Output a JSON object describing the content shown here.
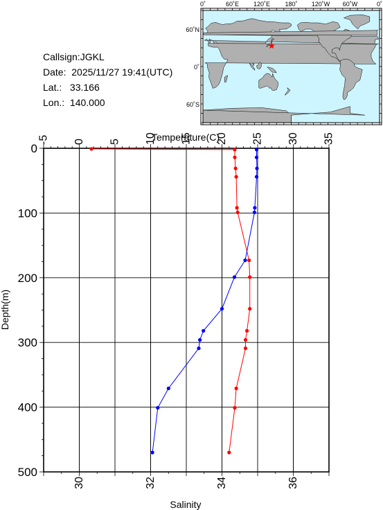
{
  "station": {
    "callsign": "Callsign:JGKL",
    "date": "Date:  2025/11/27 19:41(UTC)",
    "lat": "Lat.:   33.166",
    "lon": "Lon.:  140.000"
  },
  "map": {
    "lon_ticks": [
      "0˚",
      "60˚E",
      "120˚E",
      "180˚",
      "120˚W",
      "60˚W",
      "0˚"
    ],
    "lat_ticks": [
      "60˚N",
      "0˚",
      "60˚S"
    ],
    "ocean_color": "#ccf5ff",
    "land_color": "#b0b0b0",
    "marker": {
      "lat": 33.166,
      "lon": 140.0,
      "color": "#ff0000",
      "symbol": "star"
    }
  },
  "chart_data": {
    "type": "line",
    "x_top_label": "Temperature(C)",
    "x_bottom_label": "Salinity",
    "ylabel": "Depth(m)",
    "temperature_range": [
      -5,
      35
    ],
    "temperature_ticks": [
      "-5",
      "0",
      "5",
      "10",
      "15",
      "20",
      "25",
      "30",
      "35"
    ],
    "salinity_range": [
      29,
      37
    ],
    "salinity_ticks": [
      "30",
      "32",
      "34",
      "36"
    ],
    "depth_range": [
      0,
      500
    ],
    "depth_ticks": [
      "0",
      "100",
      "200",
      "300",
      "400",
      "500"
    ],
    "grid": true,
    "series": [
      {
        "key": "temperature",
        "color": "#ff0000",
        "points": [
          {
            "value": 1.7,
            "depth": 1
          },
          {
            "value": 21.8,
            "depth": 2
          },
          {
            "value": 21.8,
            "depth": 14
          },
          {
            "value": 21.9,
            "depth": 31
          },
          {
            "value": 22.0,
            "depth": 44
          },
          {
            "value": 22.1,
            "depth": 92
          },
          {
            "value": 22.2,
            "depth": 99
          },
          {
            "value": 23.8,
            "depth": 173
          },
          {
            "value": 23.9,
            "depth": 199
          },
          {
            "value": 23.9,
            "depth": 248
          },
          {
            "value": 23.5,
            "depth": 282
          },
          {
            "value": 23.3,
            "depth": 296
          },
          {
            "value": 23.3,
            "depth": 309
          },
          {
            "value": 22.0,
            "depth": 371
          },
          {
            "value": 21.8,
            "depth": 401
          },
          {
            "value": 21.0,
            "depth": 470
          }
        ]
      },
      {
        "key": "salinity",
        "color": "#0000ff",
        "points": [
          {
            "value": 34.97,
            "depth": 2
          },
          {
            "value": 34.97,
            "depth": 14
          },
          {
            "value": 34.98,
            "depth": 31
          },
          {
            "value": 34.97,
            "depth": 44
          },
          {
            "value": 34.92,
            "depth": 92
          },
          {
            "value": 34.91,
            "depth": 99
          },
          {
            "value": 34.65,
            "depth": 173
          },
          {
            "value": 34.35,
            "depth": 199
          },
          {
            "value": 34.0,
            "depth": 248
          },
          {
            "value": 33.48,
            "depth": 282
          },
          {
            "value": 33.38,
            "depth": 296
          },
          {
            "value": 33.35,
            "depth": 309
          },
          {
            "value": 32.5,
            "depth": 371
          },
          {
            "value": 32.2,
            "depth": 401
          },
          {
            "value": 32.05,
            "depth": 470
          }
        ]
      }
    ]
  }
}
